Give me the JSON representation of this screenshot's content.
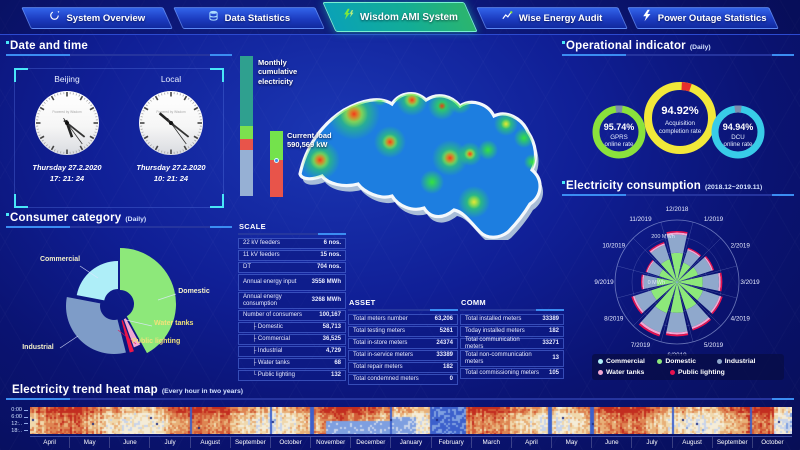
{
  "nav": {
    "tabs": [
      {
        "label": "System Overview",
        "icon": "system-overview-icon",
        "active": false
      },
      {
        "label": "Data Statistics",
        "icon": "data-statistics-icon",
        "active": false
      },
      {
        "label": "Wisdom AMI System",
        "icon": "wisdom-ami-icon",
        "active": true
      },
      {
        "label": "Wise Energy Audit",
        "icon": "energy-audit-icon",
        "active": false
      },
      {
        "label": "Power Outage Statistics",
        "icon": "power-outage-icon",
        "active": false
      }
    ]
  },
  "datetime": {
    "title": "Date and time",
    "watermark": "Powered by Wisdom",
    "clocks": [
      {
        "label": "Beijing",
        "date": "Thursday 27.2.2020",
        "time": "17: 21: 24"
      },
      {
        "label": "Local",
        "date": "Thursday 27.2.2020",
        "time": "10: 21: 24"
      }
    ]
  },
  "consumer_category": {
    "title": "Consumer category",
    "subtitle": "(Daily)",
    "chart_data": {
      "type": "pie",
      "labels": [
        "Domestic",
        "Water tanks",
        "Public lighting",
        "Industrial",
        "Commercial"
      ],
      "values": [
        42,
        2.5,
        1.5,
        32,
        22
      ],
      "colors": [
        "#8de87a",
        "#f2a8d2",
        "#ee1648",
        "#7e9cc8",
        "#aeeef8"
      ],
      "label_colors": [
        "#f2efc9",
        "#f0e27a",
        "#f0e27a",
        "#f2efc9",
        "#f2efc9"
      ]
    }
  },
  "monthly_bar": {
    "label": "Monthly cumulative electricity",
    "segments": [
      {
        "color": "#2fa08f",
        "pct": 50
      },
      {
        "color": "#7ce04e",
        "pct": 9
      },
      {
        "color": "#e8544a",
        "pct": 8
      },
      {
        "color": "#96b0d4",
        "pct": 33
      }
    ]
  },
  "current_load": {
    "label": "Current load",
    "value": "590,569 kW",
    "segments": [
      {
        "color": "#74e24c",
        "pct": 44
      },
      {
        "color": "#e8544a",
        "pct": 56
      }
    ],
    "marker_color": "#3f8fe8"
  },
  "scale_table": {
    "title": "SCALE",
    "rows": [
      {
        "label": "22 kV feeders",
        "value": "6 nos."
      },
      {
        "label": "11 kV feeders",
        "value": "15 nos."
      },
      {
        "label": "DT",
        "value": "704 nos."
      },
      {
        "label": "Annual energy input",
        "value": "3558 MWh",
        "tall": true
      },
      {
        "label": "Annual energy consumption",
        "value": "3268 MWh",
        "tall": true
      },
      {
        "label": "Number of consumers",
        "value": "100,167"
      },
      {
        "label": "├ Domestic",
        "value": "58,713",
        "indent": true
      },
      {
        "label": "├ Commercial",
        "value": "36,525",
        "indent": true
      },
      {
        "label": "├ Industrial",
        "value": "4,729",
        "indent": true
      },
      {
        "label": "├ Water tanks",
        "value": "68",
        "indent": true
      },
      {
        "label": "└ Public lighting",
        "value": "132",
        "indent": true
      }
    ]
  },
  "asset_table": {
    "title": "ASSET",
    "rows": [
      {
        "label": "Total meters number",
        "value": "63,206"
      },
      {
        "label": "Total testing meters",
        "value": "5261"
      },
      {
        "label": "Total in-store meters",
        "value": "24374"
      },
      {
        "label": "Total in-service meters",
        "value": "33389"
      },
      {
        "label": "Total repair meters",
        "value": "182"
      },
      {
        "label": "Total condemned meters",
        "value": "0"
      }
    ]
  },
  "comm_table": {
    "title": "COMM",
    "rows": [
      {
        "label": "Total installed meters",
        "value": "33389"
      },
      {
        "label": "Today installed meters",
        "value": "182"
      },
      {
        "label": "Total communication meters",
        "value": "33271"
      },
      {
        "label": "Total non-communication meters",
        "value": "13",
        "tall": true
      },
      {
        "label": "Total commissioning meters",
        "value": "105"
      }
    ]
  },
  "operational": {
    "title": "Operational indicator",
    "subtitle": "(Daily)",
    "rings": [
      {
        "value": "95.74%",
        "line1": "GPRS",
        "line2": "online rate",
        "color": "#8ae23c",
        "gap_color": "#7d8dae",
        "pct": 95.74
      },
      {
        "value": "94.92%",
        "line1": "Acquisition",
        "line2": "completion rate",
        "color": "#f2e83a",
        "gap_color": "#e8302c",
        "pct": 94.92
      },
      {
        "value": "94.94%",
        "line1": "DCU",
        "line2": "online rate",
        "color": "#38cce8",
        "gap_color": "#7d8dae",
        "pct": 94.94
      }
    ]
  },
  "consumption": {
    "title": "Electricity consumption",
    "subtitle": "(2018.12~2019.11)",
    "axis_labels": [
      "0 MWh",
      "200 MWh"
    ],
    "chart_data": {
      "type": "rose",
      "unit": "MWh",
      "radial_max": 200,
      "months": [
        "12/2018",
        "1/2019",
        "2/2019",
        "3/2019",
        "4/2019",
        "5/2019",
        "6/2019",
        "7/2019",
        "8/2019",
        "9/2019",
        "10/2019",
        "11/2019"
      ],
      "series": [
        {
          "name": "Commercial",
          "color": "#aeeef8",
          "values": [
            3,
            2,
            2,
            3,
            3,
            3,
            4,
            4,
            3,
            2,
            2,
            3
          ]
        },
        {
          "name": "Domestic",
          "color": "#8de87a",
          "values": [
            94,
            66,
            72,
            83,
            88,
            94,
            99,
            105,
            88,
            66,
            61,
            77
          ]
        },
        {
          "name": "Industrial",
          "color": "#8fa8cc",
          "values": [
            61,
            43,
            47,
            54,
            58,
            61,
            65,
            68,
            58,
            43,
            40,
            50
          ]
        },
        {
          "name": "Water tanks",
          "color": "#f2a8d2",
          "values": [
            7,
            5,
            5,
            6,
            6,
            7,
            7,
            8,
            6,
            5,
            4,
            6
          ]
        },
        {
          "name": "Public lighting",
          "color": "#e8114e",
          "values": [
            5,
            4,
            4,
            5,
            5,
            5,
            6,
            6,
            5,
            4,
            3,
            4
          ]
        }
      ],
      "legend": [
        "Commercial",
        "Domestic",
        "Industrial",
        "Water tanks",
        "Public lighting"
      ]
    }
  },
  "heatmap": {
    "title": "Electricity trend heat map",
    "subtitle": "(Every hour in two years)",
    "y_labels": [
      "0:00",
      "6:00",
      "12:..",
      "18:.."
    ],
    "months": [
      "April",
      "May",
      "June",
      "July",
      "August",
      "September",
      "October",
      "November",
      "December",
      "January",
      "February",
      "March",
      "April",
      "May",
      "June",
      "July",
      "August",
      "September",
      "October"
    ]
  }
}
